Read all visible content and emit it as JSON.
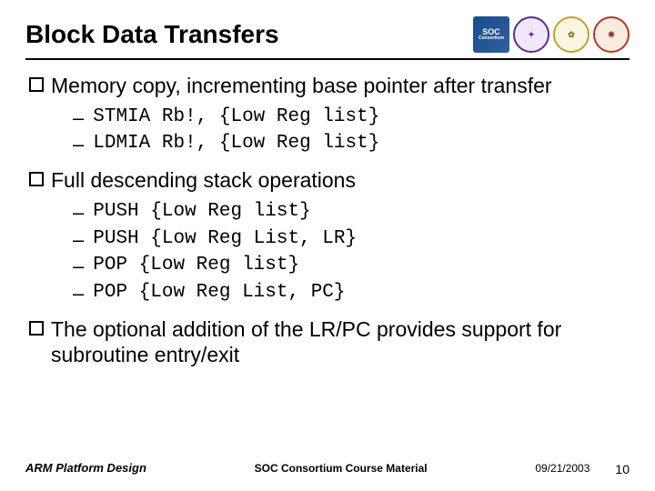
{
  "title": "Block Data Transfers",
  "logos": {
    "soc_line1": "SOC",
    "soc_line2": "Consortium",
    "purple": "✦",
    "gold1": "✿",
    "gold2": "❋"
  },
  "sections": [
    {
      "text": "Memory copy, incrementing base pointer after transfer",
      "items": [
        "STMIA Rb!, {Low Reg list}",
        "LDMIA Rb!, {Low Reg list}"
      ]
    },
    {
      "text": "Full descending stack operations",
      "items": [
        "PUSH {Low Reg list}",
        "PUSH {Low Reg List, LR}",
        "POP {Low Reg list}",
        "POP {Low Reg List, PC}"
      ]
    },
    {
      "text": "The optional addition of the LR/PC provides support for subroutine entry/exit",
      "items": []
    }
  ],
  "footer": {
    "left": "ARM Platform Design",
    "center": "SOC Consortium Course Material",
    "date": "09/21/2003",
    "page": "10"
  }
}
